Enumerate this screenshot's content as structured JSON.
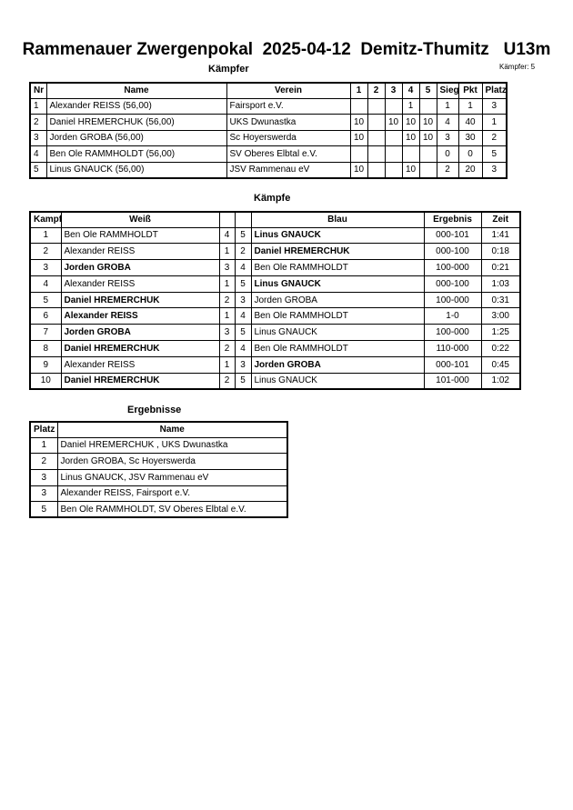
{
  "header": {
    "title": "Rammenauer Zwergenpokal  2025-04-12  Demitz-Thumitz   U13m",
    "subtitle": "Kämpfer",
    "count": "Kämpfer: 5"
  },
  "fighters": {
    "columns": [
      "Nr",
      "Name",
      "Verein",
      "1",
      "2",
      "3",
      "4",
      "5",
      "Siege",
      "Pkt",
      "Platz"
    ],
    "rows": [
      [
        1,
        "Alexander REISS  (56,00)",
        "Fairsport e.V.",
        null,
        null,
        null,
        1,
        null,
        1,
        1,
        3
      ],
      [
        2,
        "Daniel HREMERCHUK   (56,00)",
        "UKS Dwunastka",
        10,
        null,
        10,
        10,
        10,
        4,
        40,
        1
      ],
      [
        3,
        "Jorden GROBA  (56,00)",
        "Sc Hoyerswerda",
        10,
        null,
        null,
        10,
        10,
        3,
        30,
        2
      ],
      [
        4,
        "Ben Ole RAMMHOLDT  (56,00)",
        "SV Oberes Elbtal e.V.",
        null,
        null,
        null,
        null,
        null,
        0,
        0,
        5
      ],
      [
        5,
        "Linus GNAUCK  (56,00)",
        "JSV Rammenau eV",
        10,
        null,
        null,
        10,
        null,
        2,
        20,
        3
      ]
    ]
  },
  "fights": {
    "title": "Kämpfe",
    "columns": [
      "Kampf",
      "Weiß",
      null,
      null,
      "Blau",
      "Ergebnis",
      "Zeit"
    ],
    "rows": [
      [
        1,
        "Ben Ole RAMMHOLDT",
        4,
        5,
        "Linus GNAUCK",
        "000-101",
        "1:41"
      ],
      [
        2,
        "Alexander REISS",
        1,
        2,
        "Daniel HREMERCHUK",
        "000-100",
        "0:18"
      ],
      [
        3,
        "Jorden GROBA",
        3,
        4,
        "Ben Ole RAMMHOLDT",
        "100-000",
        "0:21"
      ],
      [
        4,
        "Alexander REISS",
        1,
        5,
        "Linus GNAUCK",
        "000-100",
        "1:03"
      ],
      [
        5,
        "Daniel HREMERCHUK",
        2,
        3,
        "Jorden GROBA",
        "100-000",
        "0:31"
      ],
      [
        6,
        "Alexander REISS",
        1,
        4,
        "Ben Ole RAMMHOLDT",
        "1-0",
        "3:00"
      ],
      [
        7,
        "Jorden GROBA",
        3,
        5,
        "Linus GNAUCK",
        "100-000",
        "1:25"
      ],
      [
        8,
        "Daniel HREMERCHUK",
        2,
        4,
        "Ben Ole RAMMHOLDT",
        "110-000",
        "0:22"
      ],
      [
        9,
        "Alexander REISS",
        1,
        3,
        "Jorden GROBA",
        "000-101",
        "0:45"
      ],
      [
        10,
        "Daniel HREMERCHUK",
        2,
        5,
        "Linus GNAUCK",
        "101-000",
        "1:02"
      ]
    ],
    "winner": [
      "blue",
      "blue",
      "white",
      "blue",
      "white",
      "white",
      "white",
      "white",
      "blue",
      "white"
    ]
  },
  "results": {
    "title": "Ergebnisse",
    "columns": [
      "Platz",
      "Name"
    ],
    "rows": [
      [
        1,
        "Daniel HREMERCHUK , UKS Dwunastka"
      ],
      [
        2,
        "Jorden GROBA, Sc Hoyerswerda"
      ],
      [
        3,
        "Linus GNAUCK, JSV Rammenau eV"
      ],
      [
        3,
        "Alexander REISS, Fairsport e.V."
      ],
      [
        5,
        "Ben Ole RAMMHOLDT, SV Oberes Elbtal e.V."
      ]
    ]
  }
}
